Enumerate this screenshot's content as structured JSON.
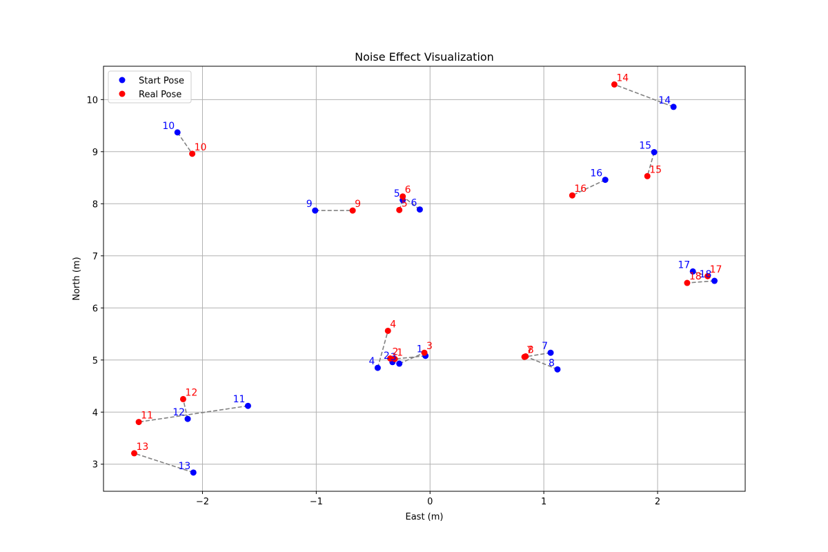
{
  "chart_data": {
    "type": "scatter",
    "title": "Noise Effect Visualization",
    "xlabel": "East (m)",
    "ylabel": "North (m)",
    "xlim": [
      -2.87,
      2.77
    ],
    "ylim": [
      2.48,
      10.64
    ],
    "x_ticks": [
      -2,
      -1,
      0,
      1,
      2
    ],
    "y_ticks": [
      3,
      4,
      5,
      6,
      7,
      8,
      9,
      10
    ],
    "x_tick_labels": [
      "−2",
      "−1",
      "0",
      "1",
      "2"
    ],
    "y_tick_labels": [
      "3",
      "4",
      "5",
      "6",
      "7",
      "8",
      "9",
      "10"
    ],
    "grid": true,
    "legend_position": "upper-left",
    "connector_color": "#808080",
    "series": [
      {
        "name": "Start Pose",
        "color": "#0000ff",
        "points": [
          {
            "label": "1",
            "x": -0.04,
            "y": 5.08
          },
          {
            "label": "2",
            "x": -0.33,
            "y": 4.96
          },
          {
            "label": "3",
            "x": -0.27,
            "y": 4.93
          },
          {
            "label": "4",
            "x": -0.46,
            "y": 4.85
          },
          {
            "label": "5",
            "x": -0.24,
            "y": 8.07
          },
          {
            "label": "6",
            "x": -0.09,
            "y": 7.89
          },
          {
            "label": "7",
            "x": 1.06,
            "y": 5.14
          },
          {
            "label": "8",
            "x": 1.12,
            "y": 4.82
          },
          {
            "label": "9",
            "x": -1.01,
            "y": 7.87
          },
          {
            "label": "10",
            "x": -2.22,
            "y": 9.37
          },
          {
            "label": "11",
            "x": -1.6,
            "y": 4.12
          },
          {
            "label": "12",
            "x": -2.13,
            "y": 3.87
          },
          {
            "label": "13",
            "x": -2.08,
            "y": 2.84
          },
          {
            "label": "14",
            "x": 2.14,
            "y": 9.86
          },
          {
            "label": "15",
            "x": 1.97,
            "y": 8.99
          },
          {
            "label": "16",
            "x": 1.54,
            "y": 8.46
          },
          {
            "label": "17",
            "x": 2.31,
            "y": 6.7
          },
          {
            "label": "18",
            "x": 2.5,
            "y": 6.52
          }
        ]
      },
      {
        "name": "Real Pose",
        "color": "#ff0000",
        "points": [
          {
            "label": "1",
            "x": -0.31,
            "y": 5.02
          },
          {
            "label": "2",
            "x": -0.35,
            "y": 5.03
          },
          {
            "label": "3",
            "x": -0.05,
            "y": 5.14
          },
          {
            "label": "4",
            "x": -0.37,
            "y": 5.56
          },
          {
            "label": "5",
            "x": -0.27,
            "y": 7.88
          },
          {
            "label": "6",
            "x": -0.24,
            "y": 8.14
          },
          {
            "label": "7",
            "x": 0.83,
            "y": 5.06
          },
          {
            "label": "8",
            "x": 0.84,
            "y": 5.07
          },
          {
            "label": "9",
            "x": -0.68,
            "y": 7.87
          },
          {
            "label": "10",
            "x": -2.09,
            "y": 8.96
          },
          {
            "label": "11",
            "x": -2.56,
            "y": 3.81
          },
          {
            "label": "12",
            "x": -2.17,
            "y": 4.25
          },
          {
            "label": "13",
            "x": -2.6,
            "y": 3.21
          },
          {
            "label": "14",
            "x": 1.62,
            "y": 10.29
          },
          {
            "label": "15",
            "x": 1.91,
            "y": 8.53
          },
          {
            "label": "16",
            "x": 1.25,
            "y": 8.16
          },
          {
            "label": "17",
            "x": 2.44,
            "y": 6.61
          },
          {
            "label": "18",
            "x": 2.26,
            "y": 6.48
          }
        ]
      }
    ]
  }
}
